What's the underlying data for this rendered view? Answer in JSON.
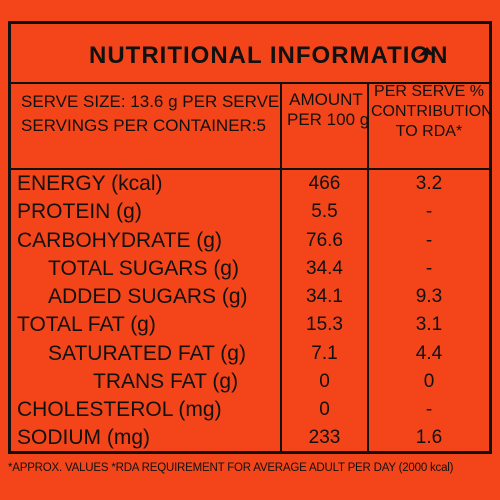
{
  "title": "NUTRITIONAL INFORMATION",
  "title_mark": "▲",
  "header": {
    "serve_size": "SERVE SIZE: 13.6 g PER SERVE",
    "servings": "SERVINGS PER CONTAINER:5",
    "amount_line1": "AMOUNT",
    "amount_line2": "PER 100 g",
    "rda_line1": "PER SERVE %",
    "rda_line2": "CONTRIBUTION",
    "rda_line3": "TO RDA*"
  },
  "rows": [
    {
      "name": "ENERGY (kcal)",
      "amount": "466",
      "rda": "3.2"
    },
    {
      "name": "PROTEIN (g)",
      "amount": "5.5",
      "rda": "-"
    },
    {
      "name": "CARBOHYDRATE (g)",
      "amount": "76.6",
      "rda": "-"
    },
    {
      "name": "TOTAL SUGARS (g)",
      "amount": "34.4",
      "rda": "-"
    },
    {
      "name": "ADDED SUGARS (g)",
      "amount": "34.1",
      "rda": "9.3"
    },
    {
      "name": "TOTAL FAT (g)",
      "amount": "15.3",
      "rda": "3.1"
    },
    {
      "name": "SATURATED FAT (g)",
      "amount": "7.1",
      "rda": "4.4"
    },
    {
      "name": "TRANS FAT (g)",
      "amount": "0",
      "rda": "0"
    },
    {
      "name": "CHOLESTEROL (mg)",
      "amount": "0",
      "rda": "-"
    },
    {
      "name": "SODIUM (mg)",
      "amount": "233",
      "rda": "1.6"
    }
  ],
  "footnote": "*APPROX. VALUES *RDA REQUIREMENT FOR AVERAGE ADULT PER DAY (2000 kcal)",
  "colors": {
    "background": "#f4451a",
    "ink": "#111111"
  }
}
